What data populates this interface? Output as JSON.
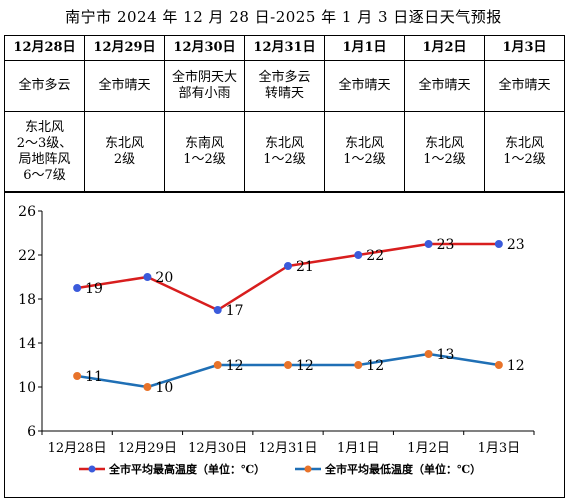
{
  "title": "南宁市 2024 年 12 月 28 日-2025 年 1 月 3 日逐日天气预报",
  "forecast": [
    {
      "date": "12月28日",
      "weather": "全市多云",
      "wind": "东北风\n2～3级、\n局地阵风\n6～7级"
    },
    {
      "date": "12月29日",
      "weather": "全市晴天",
      "wind": "东北风\n2级"
    },
    {
      "date": "12月30日",
      "weather": "全市阴天大\n部有小雨",
      "wind": "东南风\n1～2级"
    },
    {
      "date": "12月31日",
      "weather": "全市多云\n转晴天",
      "wind": "东北风\n1～2级"
    },
    {
      "date": "1月1日",
      "weather": "全市晴天",
      "wind": "东北风\n1～2级"
    },
    {
      "date": "1月2日",
      "weather": "全市晴天",
      "wind": "东北风\n1～2级"
    },
    {
      "date": "1月3日",
      "weather": "全市晴天",
      "wind": "东北风\n1～2级"
    }
  ],
  "chart_data": {
    "type": "line",
    "categories": [
      "12月28日",
      "12月29日",
      "12月30日",
      "12月31日",
      "1月1日",
      "1月2日",
      "1月3日"
    ],
    "series": [
      {
        "name": "全市平均最高温度（单位：℃）",
        "color": "#d81e1e",
        "marker": "#3b5bdb",
        "values": [
          19,
          20,
          17,
          21,
          22,
          23,
          23
        ]
      },
      {
        "name": "全市平均最低温度（单位：℃）",
        "color": "#1f6fb5",
        "marker": "#e8732a",
        "values": [
          11,
          10,
          12,
          12,
          12,
          13,
          12
        ]
      }
    ],
    "ylim": [
      6,
      26
    ],
    "yticks": [
      6,
      10,
      14,
      18,
      22,
      26
    ],
    "grid": false,
    "legend": "bottom"
  }
}
